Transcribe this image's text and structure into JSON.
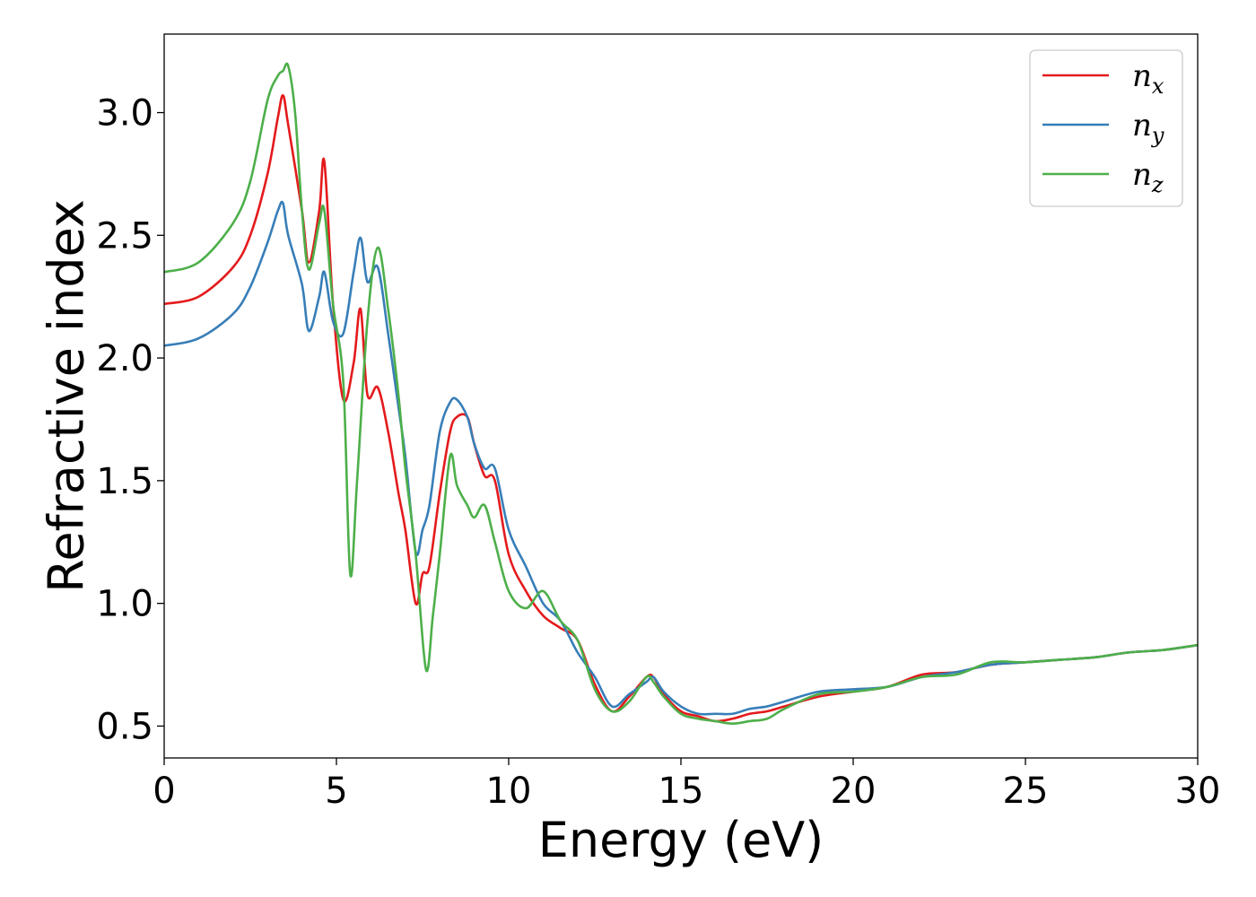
{
  "chart_data": {
    "type": "line",
    "title": "",
    "xlabel": "Energy (eV)",
    "ylabel": "Refractive index",
    "xlim": [
      0,
      30
    ],
    "ylim": [
      0.37,
      3.32
    ],
    "xticks": [
      0,
      5,
      10,
      15,
      20,
      25,
      30
    ],
    "xtick_labels": [
      "0",
      "5",
      "10",
      "15",
      "20",
      "25",
      "30"
    ],
    "yticks": [
      0.5,
      1.0,
      1.5,
      2.0,
      2.5,
      3.0
    ],
    "ytick_labels": [
      "0.5",
      "1.0",
      "1.5",
      "2.0",
      "2.5",
      "3.0"
    ],
    "grid": false,
    "legend_position": "top-right",
    "series": [
      {
        "name": "n",
        "subscript": "x",
        "color": "#e41a1c",
        "x": [
          0,
          1,
          2,
          2.5,
          3,
          3.3,
          3.45,
          3.6,
          4.0,
          4.2,
          4.5,
          4.65,
          4.9,
          5.2,
          5.5,
          5.7,
          5.9,
          6.2,
          6.5,
          6.8,
          7.0,
          7.3,
          7.5,
          7.7,
          8.0,
          8.3,
          8.5,
          8.8,
          9.0,
          9.3,
          9.6,
          10.0,
          10.5,
          11.0,
          11.5,
          12.0,
          12.5,
          13.0,
          13.5,
          14.0,
          14.2,
          14.5,
          15.0,
          15.5,
          16.0,
          16.5,
          17.0,
          17.5,
          18.0,
          19.0,
          20.0,
          21.0,
          22.0,
          23.0,
          24.0,
          25.0,
          26.0,
          27.0,
          28.0,
          29.0,
          30.0
        ],
        "y": [
          2.22,
          2.25,
          2.37,
          2.5,
          2.75,
          2.98,
          3.07,
          2.95,
          2.6,
          2.39,
          2.6,
          2.8,
          2.22,
          1.83,
          1.98,
          2.2,
          1.85,
          1.88,
          1.7,
          1.45,
          1.3,
          1.0,
          1.12,
          1.15,
          1.45,
          1.7,
          1.76,
          1.76,
          1.65,
          1.52,
          1.5,
          1.2,
          1.05,
          0.95,
          0.9,
          0.85,
          0.67,
          0.56,
          0.62,
          0.7,
          0.7,
          0.63,
          0.56,
          0.54,
          0.52,
          0.53,
          0.55,
          0.56,
          0.58,
          0.62,
          0.64,
          0.66,
          0.71,
          0.72,
          0.75,
          0.76,
          0.77,
          0.78,
          0.8,
          0.81,
          0.83
        ]
      },
      {
        "name": "n",
        "subscript": "y",
        "color": "#377eb8",
        "x": [
          0,
          1,
          2,
          2.5,
          3,
          3.3,
          3.45,
          3.6,
          4.0,
          4.2,
          4.5,
          4.65,
          4.9,
          5.2,
          5.5,
          5.7,
          5.9,
          6.2,
          6.5,
          6.8,
          7.0,
          7.3,
          7.5,
          7.7,
          8.0,
          8.3,
          8.5,
          8.8,
          9.0,
          9.3,
          9.6,
          10.0,
          10.5,
          11.0,
          11.5,
          12.0,
          12.5,
          13.0,
          13.5,
          14.0,
          14.2,
          14.5,
          15.0,
          15.5,
          16.0,
          16.5,
          17.0,
          17.5,
          18.0,
          19.0,
          20.0,
          21.0,
          22.0,
          23.0,
          24.0,
          25.0,
          26.0,
          27.0,
          28.0,
          29.0,
          30.0
        ],
        "y": [
          2.05,
          2.08,
          2.18,
          2.29,
          2.47,
          2.6,
          2.63,
          2.5,
          2.3,
          2.11,
          2.25,
          2.35,
          2.15,
          2.1,
          2.35,
          2.49,
          2.31,
          2.37,
          2.1,
          1.8,
          1.6,
          1.21,
          1.3,
          1.4,
          1.7,
          1.82,
          1.83,
          1.76,
          1.65,
          1.55,
          1.55,
          1.3,
          1.15,
          1.0,
          0.93,
          0.8,
          0.7,
          0.58,
          0.63,
          0.68,
          0.7,
          0.64,
          0.58,
          0.55,
          0.55,
          0.55,
          0.57,
          0.58,
          0.6,
          0.64,
          0.65,
          0.66,
          0.7,
          0.72,
          0.75,
          0.76,
          0.77,
          0.78,
          0.8,
          0.81,
          0.83
        ]
      },
      {
        "name": "n",
        "subscript": "z",
        "color": "#4daf4a",
        "x": [
          0,
          1,
          2,
          2.5,
          3,
          3.3,
          3.45,
          3.6,
          3.8,
          4.0,
          4.2,
          4.5,
          4.65,
          4.9,
          5.2,
          5.4,
          5.6,
          5.9,
          6.2,
          6.5,
          6.8,
          7.0,
          7.3,
          7.6,
          7.8,
          8.0,
          8.3,
          8.5,
          8.8,
          9.0,
          9.3,
          9.6,
          10.0,
          10.5,
          11.0,
          11.5,
          12.0,
          12.5,
          13.0,
          13.5,
          14.0,
          14.2,
          14.5,
          15.0,
          15.5,
          16.0,
          16.5,
          17.0,
          17.5,
          18.0,
          19.0,
          20.0,
          21.0,
          22.0,
          23.0,
          24.0,
          25.0,
          26.0,
          27.0,
          28.0,
          29.0,
          30.0
        ],
        "y": [
          2.35,
          2.39,
          2.55,
          2.72,
          3.05,
          3.15,
          3.17,
          3.19,
          3.0,
          2.6,
          2.36,
          2.55,
          2.6,
          2.22,
          1.9,
          1.12,
          1.5,
          2.15,
          2.45,
          2.2,
          1.85,
          1.55,
          1.2,
          0.73,
          0.95,
          1.2,
          1.6,
          1.48,
          1.4,
          1.35,
          1.4,
          1.25,
          1.05,
          0.98,
          1.05,
          0.93,
          0.85,
          0.65,
          0.56,
          0.6,
          0.7,
          0.68,
          0.62,
          0.55,
          0.53,
          0.52,
          0.51,
          0.52,
          0.53,
          0.57,
          0.63,
          0.64,
          0.66,
          0.7,
          0.71,
          0.76,
          0.76,
          0.77,
          0.78,
          0.8,
          0.81,
          0.83
        ]
      }
    ]
  }
}
